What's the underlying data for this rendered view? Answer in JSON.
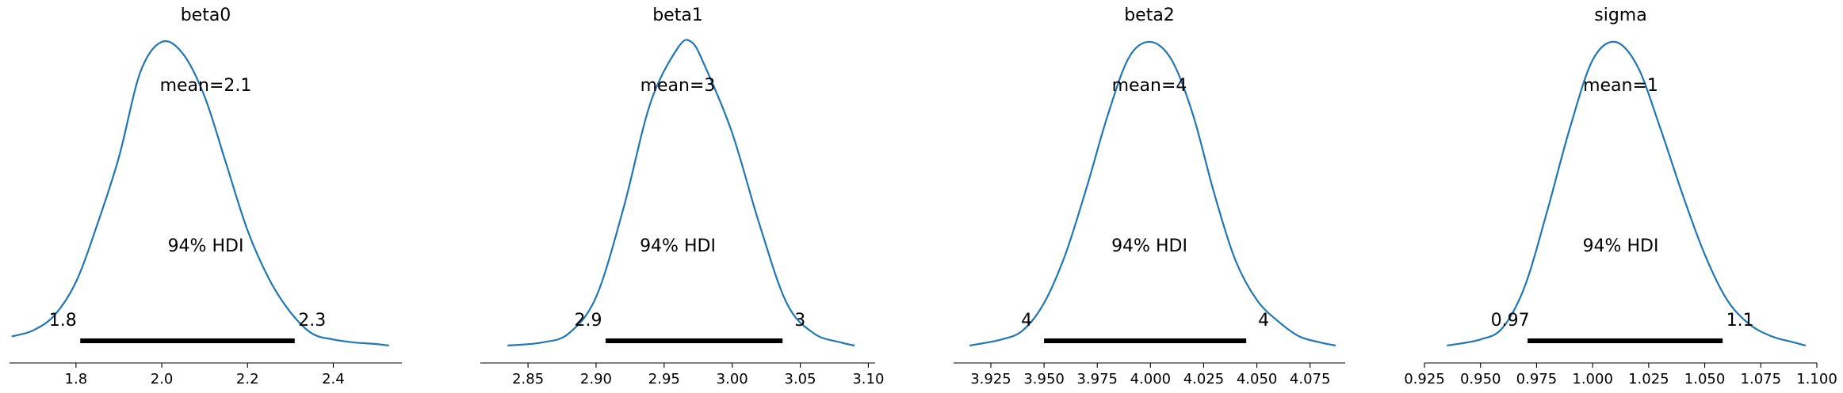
{
  "chart_data": [
    {
      "type": "line",
      "title": "beta0",
      "xlabel": "",
      "ylabel": "",
      "xlim": [
        1.645,
        2.56
      ],
      "xticks": [
        1.8,
        2.0,
        2.2,
        2.4
      ],
      "xtick_labels": [
        "1.8",
        "2.0",
        "2.2",
        "2.4"
      ],
      "mean_label": "mean=2.1",
      "hdi_label": "94% HDI",
      "hdi": [
        1.81,
        2.31
      ],
      "hdi_labels": [
        "1.8",
        "2.3"
      ],
      "density": {
        "x": [
          1.65,
          1.7,
          1.75,
          1.8,
          1.85,
          1.9,
          1.95,
          2.0,
          2.05,
          2.1,
          2.15,
          2.2,
          2.25,
          2.3,
          2.35,
          2.4,
          2.45,
          2.5,
          2.53
        ],
        "y": [
          0.03,
          0.05,
          0.1,
          0.21,
          0.4,
          0.62,
          0.9,
          1.0,
          0.96,
          0.82,
          0.6,
          0.38,
          0.22,
          0.11,
          0.04,
          0.02,
          0.01,
          0.005,
          0.0
        ]
      }
    },
    {
      "type": "line",
      "title": "beta1",
      "xlabel": "",
      "ylabel": "",
      "xlim": [
        2.815,
        3.105
      ],
      "xticks": [
        2.85,
        2.9,
        2.95,
        3.0,
        3.05,
        3.1
      ],
      "xtick_labels": [
        "2.85",
        "2.90",
        "2.95",
        "3.00",
        "3.05",
        "3.10"
      ],
      "mean_label": "mean=3",
      "hdi_label": "94% HDI",
      "hdi": [
        2.907,
        3.037
      ],
      "hdi_labels": [
        "2.9",
        "3"
      ],
      "density": {
        "x": [
          2.835,
          2.86,
          2.88,
          2.9,
          2.92,
          2.94,
          2.96,
          2.97,
          2.98,
          3.0,
          3.02,
          3.04,
          3.06,
          3.08,
          3.09
        ],
        "y": [
          0.0,
          0.01,
          0.04,
          0.16,
          0.45,
          0.8,
          0.98,
          1.0,
          0.92,
          0.7,
          0.4,
          0.14,
          0.04,
          0.01,
          0.0
        ]
      }
    },
    {
      "type": "line",
      "title": "beta2",
      "xlabel": "",
      "ylabel": "",
      "xlim": [
        3.9075,
        4.0915
      ],
      "xticks": [
        3.925,
        3.95,
        3.975,
        4.0,
        4.025,
        4.05,
        4.075
      ],
      "xtick_labels": [
        "3.925",
        "3.950",
        "3.975",
        "4.000",
        "4.025",
        "4.050",
        "4.075"
      ],
      "mean_label": "mean=4",
      "hdi_label": "94% HDI",
      "hdi": [
        3.95,
        4.045
      ],
      "hdi_labels": [
        "4",
        "4"
      ],
      "density": {
        "x": [
          3.915,
          3.93,
          3.94,
          3.95,
          3.96,
          3.97,
          3.98,
          3.99,
          4.0,
          4.01,
          4.02,
          4.03,
          4.04,
          4.05,
          4.06,
          4.07,
          4.08,
          4.087
        ],
        "y": [
          0.0,
          0.02,
          0.05,
          0.14,
          0.3,
          0.52,
          0.76,
          0.95,
          1.0,
          0.94,
          0.76,
          0.5,
          0.28,
          0.15,
          0.08,
          0.03,
          0.01,
          0.0
        ]
      }
    },
    {
      "type": "line",
      "title": "sigma",
      "xlabel": "",
      "ylabel": "",
      "xlim": [
        0.925,
        1.1
      ],
      "xticks": [
        0.925,
        0.95,
        0.975,
        1.0,
        1.025,
        1.05,
        1.075,
        1.1
      ],
      "xtick_labels": [
        "0.925",
        "0.950",
        "0.975",
        "1.000",
        "1.025",
        "1.050",
        "1.075",
        "1.100"
      ],
      "mean_label": "mean=1",
      "hdi_label": "94% HDI",
      "hdi": [
        0.971,
        1.058
      ],
      "hdi_labels": [
        "0.97",
        "1.1"
      ],
      "density": {
        "x": [
          0.935,
          0.95,
          0.96,
          0.97,
          0.98,
          0.99,
          1.0,
          1.01,
          1.02,
          1.03,
          1.04,
          1.05,
          1.06,
          1.07,
          1.08,
          1.09,
          1.095
        ],
        "y": [
          0.0,
          0.02,
          0.06,
          0.2,
          0.45,
          0.72,
          0.94,
          1.0,
          0.92,
          0.72,
          0.5,
          0.3,
          0.15,
          0.07,
          0.03,
          0.01,
          0.0
        ]
      }
    }
  ]
}
